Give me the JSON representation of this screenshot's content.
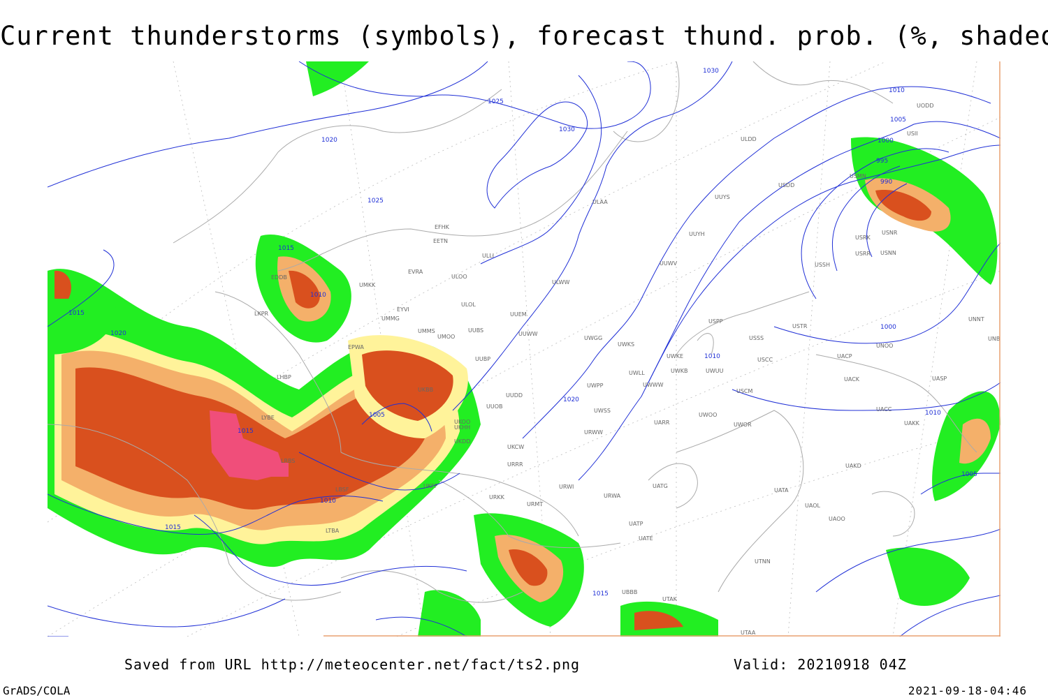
{
  "title": "Current thunderstorms (symbols), forecast thund. prob. (%, shaded)",
  "footer": {
    "saved": "Saved from URL http://meteocenter.net/fact/ts2.png",
    "valid": "Valid: 20210918 04Z",
    "software": "GrADS/COLA",
    "timestamp": "2021-09-18-04:46"
  },
  "colors": {
    "isobar": "#1f2fd6",
    "coast": "#aaaaaa",
    "prob_low": "#22ee22",
    "prob_mid": "#fff39a",
    "prob_high1": "#f4b06a",
    "prob_high2": "#d9501e",
    "prob_max": "#f04e7a"
  },
  "isobar_labels": [
    "1030",
    "1025",
    "1020",
    "1015",
    "1010",
    "1005",
    "1000",
    "995",
    "990",
    "1025",
    "1030",
    "1020",
    "1015",
    "1010",
    "1005",
    "1010",
    "1015",
    "1020",
    "1015",
    "1010",
    "1000",
    "1005",
    "1010",
    "1015"
  ],
  "stations": [
    "ULDD",
    "USDD",
    "UUYS",
    "ULAA",
    "EFHK",
    "EETN",
    "ULLI",
    "UUYH",
    "EVRA",
    "ULOO",
    "UUWW",
    "UUEM",
    "ULOL",
    "UMKK",
    "EYVI",
    "UMMG",
    "UMMS",
    "UMOO",
    "UUBS",
    "UUBP",
    "UKBB",
    "UKHH",
    "UKDD",
    "UKCW",
    "UKFF",
    "URRR",
    "URKK",
    "URMT",
    "URWI",
    "URWA",
    "UATG",
    "UATP",
    "UATE",
    "UUWV",
    "UWGG",
    "UWKS",
    "UWKE",
    "UWKB",
    "UWUU",
    "UWWW",
    "UWLL",
    "UWPP",
    "UWSS",
    "URWW",
    "UARR",
    "UWOO",
    "UWOR",
    "USPP",
    "USSS",
    "USTR",
    "USCC",
    "USCM",
    "UACP",
    "UACK",
    "UACC",
    "UAKK",
    "UASP",
    "UNOO",
    "UNNT",
    "UNBB",
    "USSH",
    "USRR",
    "USNN",
    "USNR",
    "USRK",
    "USMN",
    "USII",
    "UODD",
    "UAKD",
    "UAOL",
    "UAOO",
    "UATA",
    "UTNN",
    "UTAK",
    "UTAA",
    "UBBB",
    "EDDB",
    "EPWA",
    "LKPR",
    "LHBP",
    "LYBE",
    "LBSF",
    "LRBS",
    "LTBA",
    "UUOB",
    "UKOO",
    "UUDD",
    "ULWW"
  ]
}
